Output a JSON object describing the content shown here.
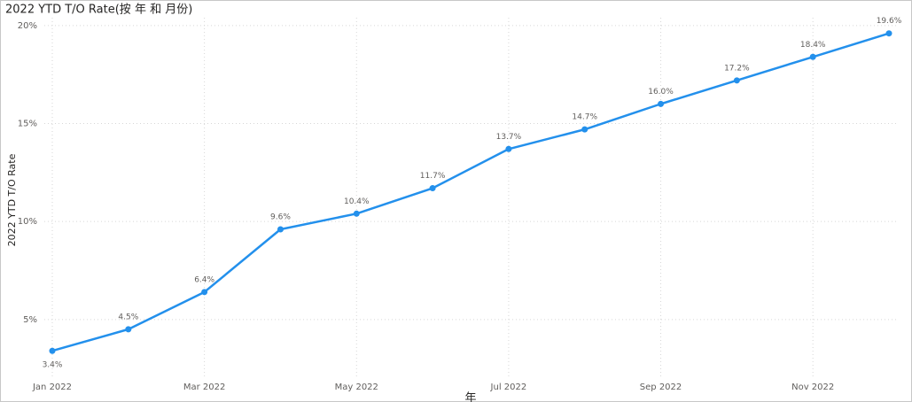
{
  "chart_data": {
    "type": "line",
    "title": "2022 YTD T/O Rate(按 年 和 月份)",
    "x_label": "年",
    "y_label": "2022 YTD T/O Rate",
    "categories": [
      "Jan 2022",
      null,
      "Mar 2022",
      null,
      "May 2022",
      null,
      "Jul 2022",
      null,
      "Sep 2022",
      null,
      "Nov 2022",
      null
    ],
    "series": [
      {
        "name": "2022 YTD T/O Rate",
        "color": "#2390ec",
        "values": [
          3.4,
          4.5,
          6.4,
          9.6,
          10.4,
          11.7,
          13.7,
          14.7,
          16.0,
          17.2,
          18.4,
          19.6
        ],
        "value_labels": [
          "3.4%",
          "4.5%",
          "6.4%",
          "9.6%",
          "10.4%",
          "11.7%",
          "13.7%",
          "14.7%",
          "16.0%",
          "17.2%",
          "18.4%",
          "19.6%"
        ]
      }
    ],
    "ylim": [
      2.1,
      20.4
    ],
    "yticks": [
      {
        "value": 5,
        "label": "5%"
      },
      {
        "value": 10,
        "label": "10%"
      },
      {
        "value": 15,
        "label": "15%"
      },
      {
        "value": 20,
        "label": "20%"
      }
    ],
    "grid": true
  }
}
